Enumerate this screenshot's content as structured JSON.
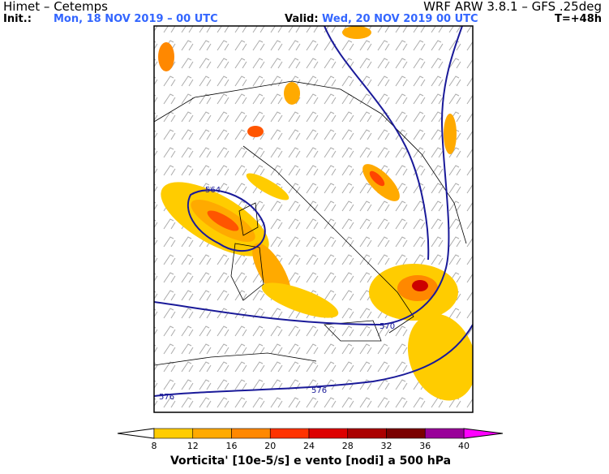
{
  "header": {
    "source": "Himet – Cetemps",
    "model": "WRF ARW 3.8.1 – GFS .25deg",
    "init_label": "Init.:",
    "init_value": "Mon, 18 NOV 2019 – 00 UTC",
    "valid_label": "Valid:",
    "valid_value": "Wed, 20 NOV 2019  00 UTC",
    "lead": "T=+48h"
  },
  "contour_labels": [
    "564",
    "570",
    "576",
    "576"
  ],
  "colorbar": {
    "ticks": [
      8,
      12,
      16,
      20,
      24,
      28,
      32,
      36,
      40
    ],
    "caption": "Vorticita' [10e-5/s] e vento [nodi] a 500 hPa"
  }
}
